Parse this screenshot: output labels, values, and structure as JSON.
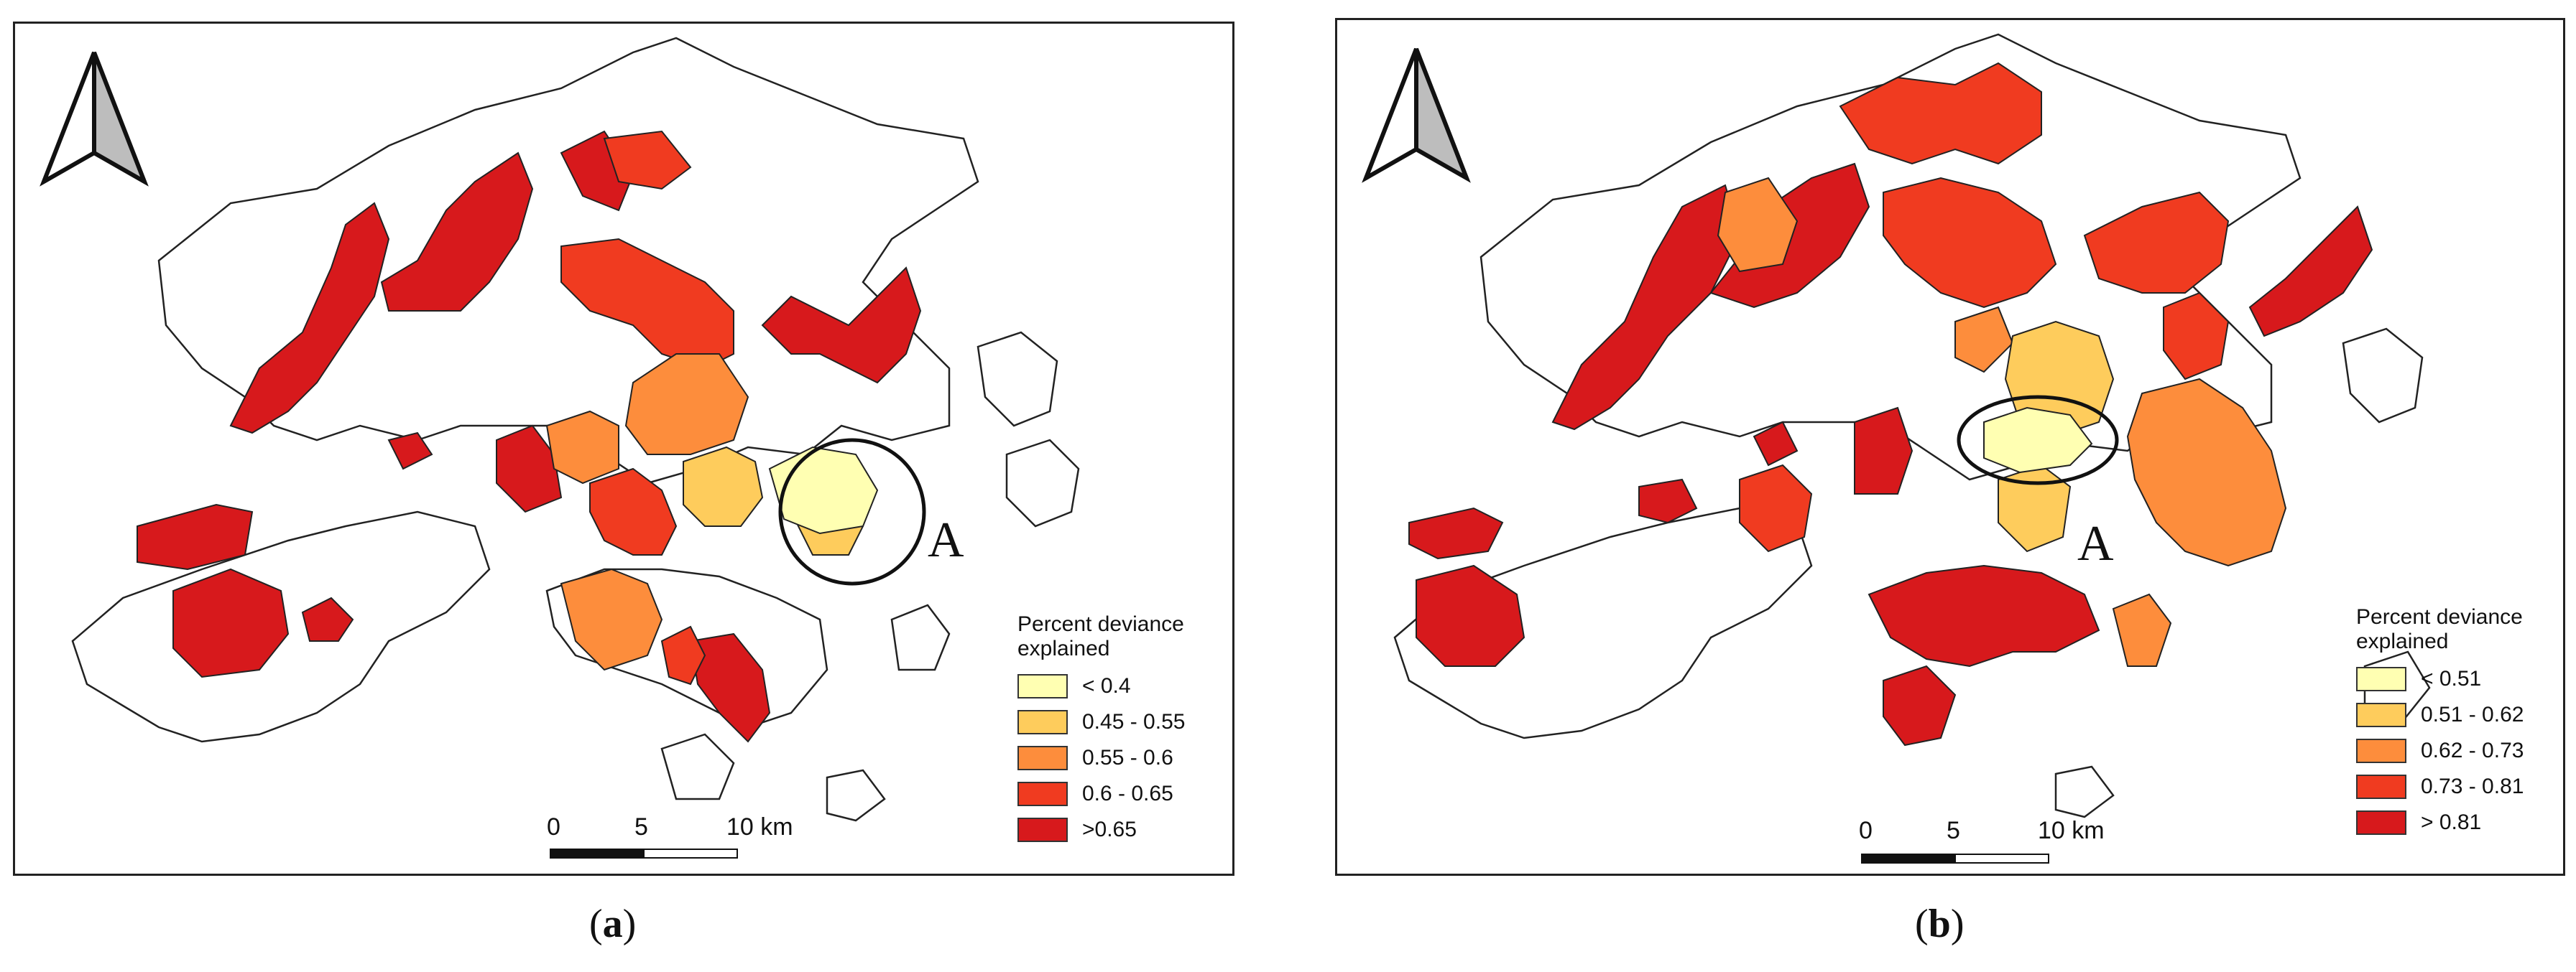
{
  "panels": [
    {
      "caption_letter": "a",
      "area_label": "A",
      "legend": {
        "title": "Percent deviance explained",
        "classes": [
          {
            "label": "< 0.4",
            "color": "#ffffb2"
          },
          {
            "label": "0.45 - 0.55",
            "color": "#fecc5c"
          },
          {
            "label": "0.55 - 0.6",
            "color": "#fd8d3c"
          },
          {
            "label": "0.6 - 0.65",
            "color": "#f03b20"
          },
          {
            "label": ">0.65",
            "color": "#d7191c"
          }
        ]
      },
      "scale": {
        "zero": "0",
        "mid": "5",
        "end": "10 km"
      }
    },
    {
      "caption_letter": "b",
      "area_label": "A",
      "legend": {
        "title": "Percent deviance explained",
        "classes": [
          {
            "label": "< 0.51",
            "color": "#ffffb2"
          },
          {
            "label": "0.51 - 0.62",
            "color": "#fecc5c"
          },
          {
            "label": "0.62 - 0.73",
            "color": "#fd8d3c"
          },
          {
            "label": "0.73 - 0.81",
            "color": "#f03b20"
          },
          {
            "label": "> 0.81",
            "color": "#d7191c"
          }
        ]
      },
      "scale": {
        "zero": "0",
        "mid": "5",
        "end": "10 km"
      }
    }
  ],
  "icons": {
    "north_arrow": "north-arrow-icon"
  }
}
